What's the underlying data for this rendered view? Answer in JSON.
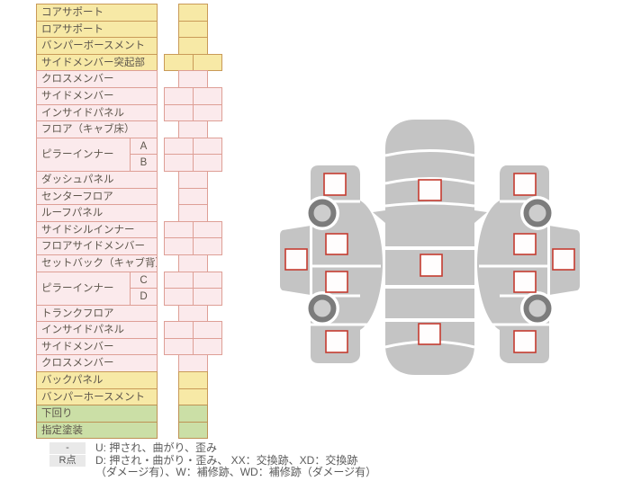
{
  "table": {
    "rows": [
      {
        "label": "コアサポート",
        "color": "yellow",
        "cells": "single"
      },
      {
        "label": "ロアサポート",
        "color": "yellow",
        "cells": "single"
      },
      {
        "label": "バンパーボースメント",
        "color": "yellow",
        "cells": "single"
      },
      {
        "label": "サイドメンバー突起部",
        "color": "yellow",
        "cells": "double"
      },
      {
        "label": "クロスメンバー",
        "color": "pink",
        "cells": "single"
      },
      {
        "label": "サイドメンバー",
        "color": "pink",
        "cells": "double"
      },
      {
        "label": "インサイドパネル",
        "color": "pink",
        "cells": "double"
      },
      {
        "label": "フロア（キャブ床）",
        "color": "pink",
        "cells": "single"
      },
      {
        "label": "ピラーインナー",
        "subs": [
          "A",
          "B"
        ],
        "color": "pink",
        "cells": "double"
      },
      {
        "label": "ダッシュパネル",
        "color": "pink",
        "cells": "single"
      },
      {
        "label": "センターフロア",
        "color": "pink",
        "cells": "single"
      },
      {
        "label": "ルーフパネル",
        "color": "pink",
        "cells": "single"
      },
      {
        "label": "サイドシルインナー",
        "color": "pink",
        "cells": "double"
      },
      {
        "label": "フロアサイドメンバー",
        "color": "pink",
        "cells": "double"
      },
      {
        "label": "セットバック（キャブ背）",
        "color": "pink",
        "cells": "single"
      },
      {
        "label": "ピラーインナー",
        "subs": [
          "C",
          "D"
        ],
        "color": "pink",
        "cells": "double"
      },
      {
        "label": "トランクフロア",
        "color": "pink",
        "cells": "single"
      },
      {
        "label": "インサイドパネル",
        "color": "pink",
        "cells": "double"
      },
      {
        "label": "サイドメンバー",
        "color": "pink",
        "cells": "double"
      },
      {
        "label": "クロスメンバー",
        "color": "pink",
        "cells": "single"
      },
      {
        "label": "バックパネル",
        "color": "yellow",
        "cells": "single"
      },
      {
        "label": "バンパーホースメント",
        "color": "yellow",
        "cells": "single"
      },
      {
        "label": "下回り",
        "color": "green",
        "cells": "single"
      },
      {
        "label": "指定塗装",
        "color": "green",
        "cells": "single"
      }
    ]
  },
  "legend": {
    "items": [
      {
        "badge": "-",
        "text": "U: 押され、曲がり、歪み"
      },
      {
        "badge": "R点",
        "text": "D: 押され・曲がり・歪み、 XX：交換跡、XD：交換跡",
        "text2": "（ダメージ有）、W：補修跡、WD：補修跡（ダメージ有）"
      }
    ]
  },
  "diagram": {
    "markers": [
      "center-windshield",
      "center-roof",
      "center-rear-window",
      "left-front-fender",
      "left-front-door",
      "left-rear-door",
      "left-rear-fender",
      "left-side-outer-panel",
      "right-front-fender",
      "right-front-door",
      "right-rear-door",
      "right-rear-fender",
      "right-side-outer-panel"
    ]
  },
  "colors": {
    "row_yellow": "#f7e9a6",
    "bd_yellow": "#c99a58",
    "row_pink": "#fbeaec",
    "bd_pink": "#de9f96",
    "row_green": "#cbdfa6",
    "bd_green": "#be9254",
    "marker_border": "#c53b30",
    "car_gray": "#c4c4c4",
    "text": "#5e564c"
  }
}
